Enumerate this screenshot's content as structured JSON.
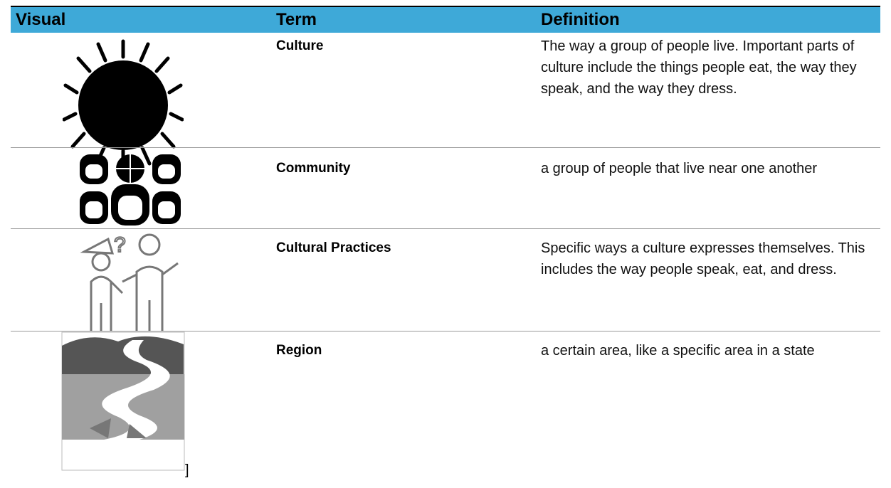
{
  "table": {
    "headers": [
      "Visual",
      "Term",
      "Definition"
    ],
    "rows": [
      {
        "term": "Culture",
        "definition": "The way a group of people live. Important parts of culture include the things people eat, the way they speak, and the way they dress."
      },
      {
        "term": "Community",
        "definition": "a group of people that live near one another"
      },
      {
        "term": "Cultural Practices",
        "definition": "Specific ways a culture expresses themselves. This includes the way people speak, eat, and dress."
      },
      {
        "term": "Region",
        "definition": "a certain area, like a specific area in a state",
        "visual_note": "]"
      }
    ]
  }
}
